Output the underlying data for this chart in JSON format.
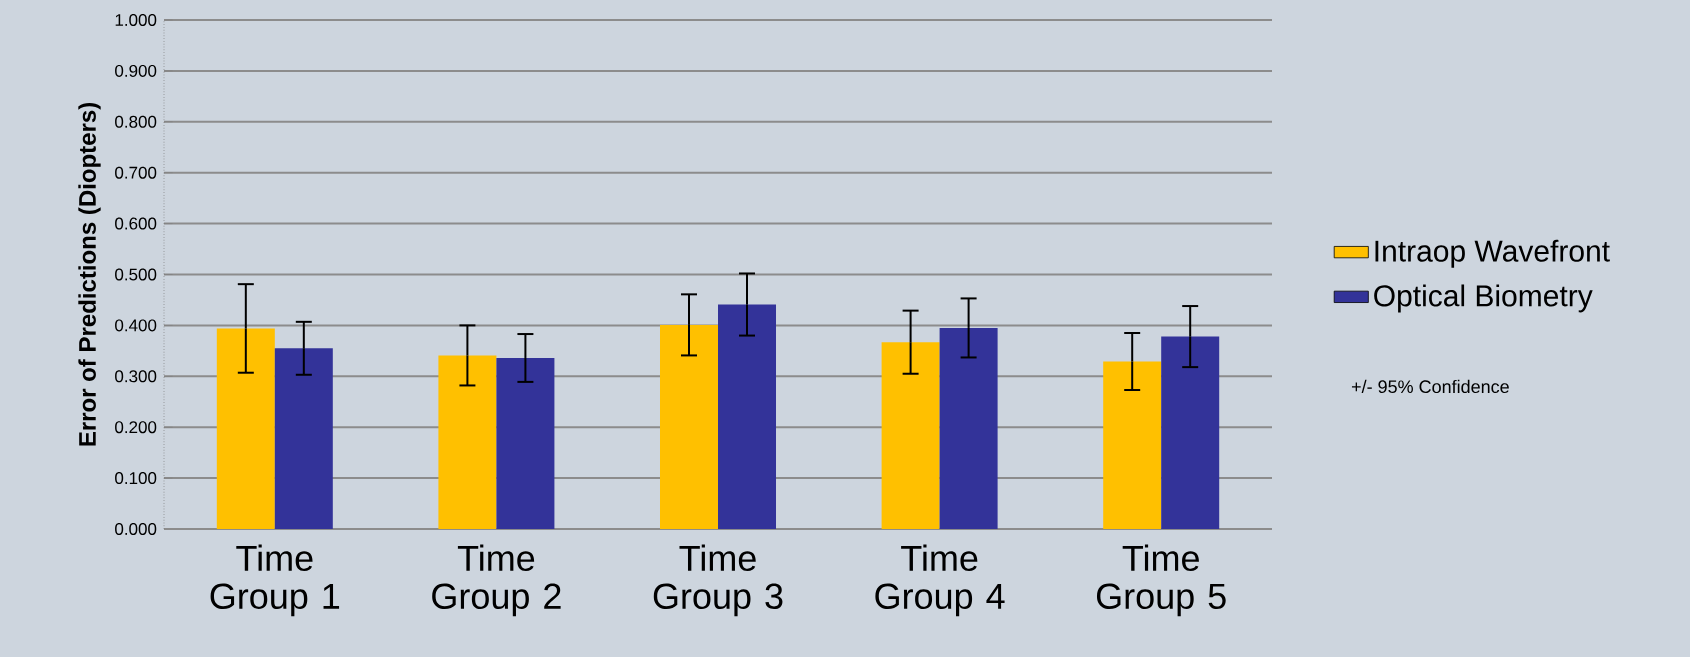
{
  "chart_data": {
    "type": "bar",
    "ylabel": "Error of Predictions (Diopters)",
    "categories": [
      "Time Group 1",
      "Time Group 2",
      "Time Group 3",
      "Time Group 4",
      "Time Group 5"
    ],
    "series": [
      {
        "name": "Intraop Wavefront",
        "color": "#ffc000",
        "values": [
          0.394,
          0.341,
          0.401,
          0.367,
          0.329
        ],
        "errors": [
          0.087,
          0.059,
          0.06,
          0.062,
          0.056
        ]
      },
      {
        "name": "Optical Biometry",
        "color": "#333399",
        "values": [
          0.355,
          0.336,
          0.441,
          0.395,
          0.378
        ],
        "errors": [
          0.052,
          0.047,
          0.061,
          0.058,
          0.06
        ]
      }
    ],
    "ylim": [
      0,
      1
    ],
    "yticks": [
      {
        "value": 0,
        "label": "0.000"
      },
      {
        "value": 0.1,
        "label": "0.100"
      },
      {
        "value": 0.2,
        "label": "0.200"
      },
      {
        "value": 0.3,
        "label": "0.300"
      },
      {
        "value": 0.4,
        "label": "0.400"
      },
      {
        "value": 0.5,
        "label": "0.500"
      },
      {
        "value": 0.6,
        "label": "0.600"
      },
      {
        "value": 0.7,
        "label": "0.700"
      },
      {
        "value": 0.8,
        "label": "0.800"
      },
      {
        "value": 0.9,
        "label": "0.900"
      },
      {
        "value": 1,
        "label": "1.000"
      }
    ],
    "grid": "y",
    "legend": "right",
    "annotations": [
      "+/- 95% Confidence"
    ]
  }
}
